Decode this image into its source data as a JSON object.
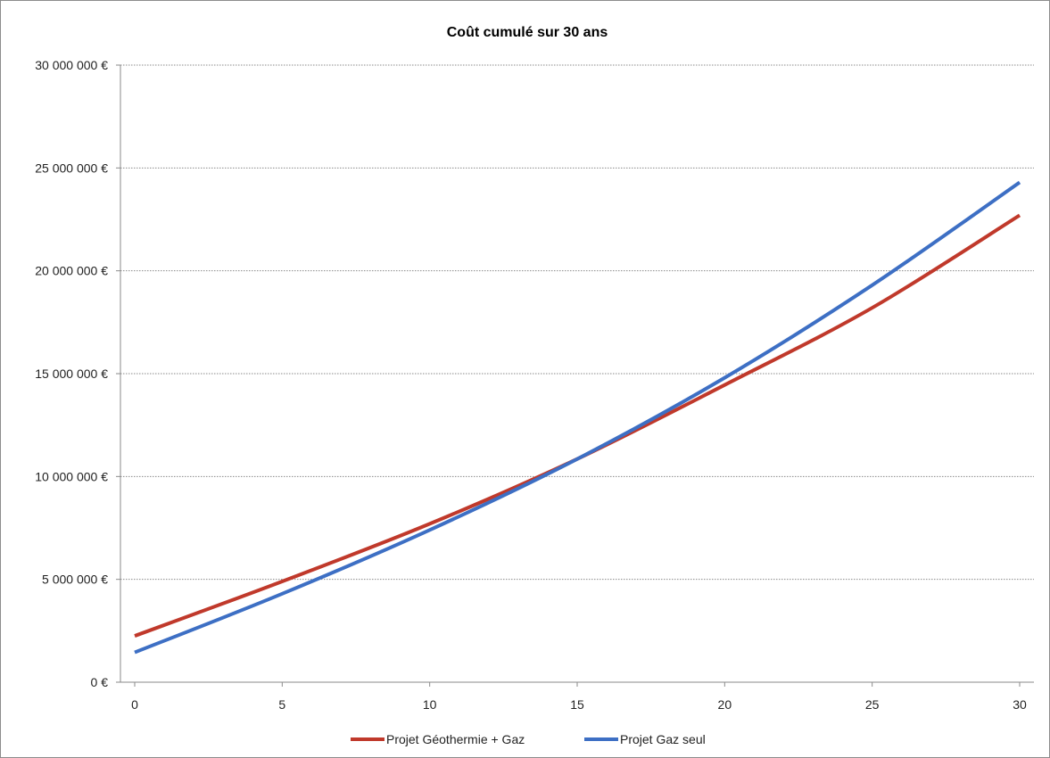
{
  "chart_data": {
    "type": "line",
    "title": "Coût cumulé sur 30 ans",
    "xlabel": "",
    "ylabel": "",
    "xlim": [
      0,
      30
    ],
    "ylim": [
      0,
      30000000
    ],
    "x_ticks": [
      "0",
      "5",
      "10",
      "15",
      "20",
      "25",
      "30"
    ],
    "y_ticks": [
      "0 €",
      "5 000 000 €",
      "10 000 000 €",
      "15 000 000 €",
      "20 000 000 €",
      "25 000 000 €",
      "30 000 000 €"
    ],
    "grid": true,
    "legend_position": "bottom",
    "x": [
      0,
      5,
      10,
      15,
      20,
      25,
      30
    ],
    "series": [
      {
        "name": "Projet Géothermie + Gaz",
        "color": "#c0392b",
        "values": [
          2250000,
          4900000,
          7700000,
          10850000,
          14450000,
          18200000,
          22700000
        ]
      },
      {
        "name": "Projet Gaz seul",
        "color": "#3d6fc4",
        "values": [
          1450000,
          4300000,
          7400000,
          10850000,
          14800000,
          19300000,
          24300000
        ]
      }
    ]
  }
}
